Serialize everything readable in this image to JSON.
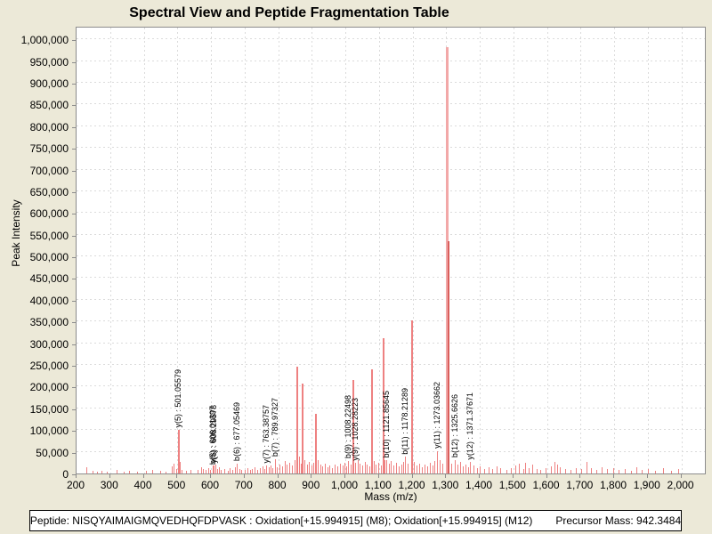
{
  "title": "Spectral View and Peptide Fragmentation Table",
  "footer": {
    "peptide_label": "Peptide: NISQYAIMAIGMQVEDHQFDPVASK : Oxidation[+15.994915] (M8); Oxidation[+15.994915] (M12)",
    "precursor_label": "Precursor Mass: 942.3484"
  },
  "chart_data": {
    "type": "bar",
    "subtype": "mass-spectrum",
    "title": "Spectral View and Peptide Fragmentation Table",
    "xlabel": "Mass (m/z)",
    "ylabel": "Peak Intensity",
    "xlim": [
      200,
      2070
    ],
    "ylim": [
      0,
      1027000
    ],
    "grid": "dashed",
    "x_ticks": [
      [
        200,
        "200"
      ],
      [
        300,
        "300"
      ],
      [
        400,
        "400"
      ],
      [
        500,
        "500"
      ],
      [
        600,
        "600"
      ],
      [
        700,
        "700"
      ],
      [
        800,
        "800"
      ],
      [
        900,
        "900"
      ],
      [
        1000,
        "1,000"
      ],
      [
        1100,
        "1,100"
      ],
      [
        1200,
        "1,200"
      ],
      [
        1300,
        "1,300"
      ],
      [
        1400,
        "1,400"
      ],
      [
        1500,
        "1,500"
      ],
      [
        1600,
        "1,600"
      ],
      [
        1700,
        "1,700"
      ],
      [
        1800,
        "1,800"
      ],
      [
        1900,
        "1,900"
      ],
      [
        2000,
        "2,000"
      ]
    ],
    "y_ticks": [
      [
        0,
        "0"
      ],
      [
        50000,
        "50,000"
      ],
      [
        100000,
        "100,000"
      ],
      [
        150000,
        "150,000"
      ],
      [
        200000,
        "200,000"
      ],
      [
        250000,
        "250,000"
      ],
      [
        300000,
        "300,000"
      ],
      [
        350000,
        "350,000"
      ],
      [
        400000,
        "400,000"
      ],
      [
        450000,
        "450,000"
      ],
      [
        500000,
        "500,000"
      ],
      [
        550000,
        "550,000"
      ],
      [
        600000,
        "600,000"
      ],
      [
        650000,
        "650,000"
      ],
      [
        700000,
        "700,000"
      ],
      [
        750000,
        "750,000"
      ],
      [
        800000,
        "800,000"
      ],
      [
        850000,
        "850,000"
      ],
      [
        900000,
        "900,000"
      ],
      [
        950000,
        "950,000"
      ],
      [
        1000000,
        "1,000,000"
      ]
    ],
    "colors": {
      "peak": "#EE8181",
      "peak_major_light": "#F2A8A8",
      "peak_major_dark": "#D95F5C",
      "grid": "#DBDBDB",
      "plot_border": "#8C8C8C",
      "plot_bg": "#FFFFFF",
      "window_bg": "#ECE9D8",
      "text": "#000000"
    },
    "peaks": [
      [
        230,
        14000
      ],
      [
        248,
        6000
      ],
      [
        262,
        5000
      ],
      [
        273,
        7000
      ],
      [
        291,
        5000
      ],
      [
        318,
        9000
      ],
      [
        341,
        5000
      ],
      [
        356,
        7000
      ],
      [
        379,
        5000
      ],
      [
        406,
        6000
      ],
      [
        426,
        9000
      ],
      [
        448,
        6000
      ],
      [
        466,
        5000
      ],
      [
        483,
        16000
      ],
      [
        490,
        22000
      ],
      [
        496,
        10000
      ],
      [
        501.05579,
        100000
      ],
      [
        507,
        26000
      ],
      [
        513,
        8000
      ],
      [
        526,
        6000
      ],
      [
        539,
        9000
      ],
      [
        561,
        8000
      ],
      [
        570,
        14000
      ],
      [
        576,
        10000
      ],
      [
        584,
        8000
      ],
      [
        591,
        12000
      ],
      [
        598,
        9000
      ],
      [
        604,
        18000
      ],
      [
        606.01397,
        14000
      ],
      [
        608.29578,
        18000
      ],
      [
        613,
        20000
      ],
      [
        618,
        10000
      ],
      [
        623,
        14000
      ],
      [
        629,
        8000
      ],
      [
        641,
        10000
      ],
      [
        649,
        7000
      ],
      [
        656,
        12000
      ],
      [
        663,
        9000
      ],
      [
        671,
        14000
      ],
      [
        677.05469,
        22000
      ],
      [
        684,
        10000
      ],
      [
        691,
        8000
      ],
      [
        701,
        9000
      ],
      [
        709,
        12000
      ],
      [
        716,
        8000
      ],
      [
        723,
        10000
      ],
      [
        731,
        14000
      ],
      [
        739,
        9000
      ],
      [
        746,
        12000
      ],
      [
        753,
        16000
      ],
      [
        759,
        10000
      ],
      [
        763.38757,
        18000
      ],
      [
        771,
        14000
      ],
      [
        777,
        18000
      ],
      [
        783,
        12000
      ],
      [
        789.97327,
        32000
      ],
      [
        797,
        14000
      ],
      [
        804,
        20000
      ],
      [
        811,
        16000
      ],
      [
        819,
        28000
      ],
      [
        826,
        20000
      ],
      [
        833,
        24000
      ],
      [
        841,
        18000
      ],
      [
        849,
        30000
      ],
      [
        855,
        247000
      ],
      [
        861,
        40000
      ],
      [
        867,
        22000
      ],
      [
        871,
        207000
      ],
      [
        879,
        30000
      ],
      [
        885,
        20000
      ],
      [
        891,
        26000
      ],
      [
        898,
        18000
      ],
      [
        904,
        24000
      ],
      [
        910,
        137000
      ],
      [
        918,
        30000
      ],
      [
        925,
        20000
      ],
      [
        932,
        16000
      ],
      [
        939,
        22000
      ],
      [
        946,
        14000
      ],
      [
        953,
        18000
      ],
      [
        961,
        12000
      ],
      [
        969,
        20000
      ],
      [
        976,
        16000
      ],
      [
        983,
        22000
      ],
      [
        991,
        18000
      ],
      [
        998,
        24000
      ],
      [
        1003,
        16000
      ],
      [
        1008.22498,
        28000
      ],
      [
        1015,
        20000
      ],
      [
        1021,
        215000
      ],
      [
        1028.28223,
        24000
      ],
      [
        1036,
        30000
      ],
      [
        1043,
        22000
      ],
      [
        1050,
        18000
      ],
      [
        1057,
        26000
      ],
      [
        1064,
        20000
      ],
      [
        1071,
        16000
      ],
      [
        1076,
        239000
      ],
      [
        1084,
        28000
      ],
      [
        1091,
        20000
      ],
      [
        1098,
        24000
      ],
      [
        1105,
        18000
      ],
      [
        1110,
        311000
      ],
      [
        1117,
        30000
      ],
      [
        1121.85645,
        30000
      ],
      [
        1129,
        22000
      ],
      [
        1136,
        28000
      ],
      [
        1143,
        18000
      ],
      [
        1151,
        24000
      ],
      [
        1159,
        16000
      ],
      [
        1166,
        20000
      ],
      [
        1173,
        26000
      ],
      [
        1178.21289,
        38000
      ],
      [
        1186,
        22000
      ],
      [
        1195,
        352000
      ],
      [
        1203,
        26000
      ],
      [
        1211,
        18000
      ],
      [
        1219,
        22000
      ],
      [
        1227,
        14000
      ],
      [
        1235,
        20000
      ],
      [
        1243,
        16000
      ],
      [
        1251,
        24000
      ],
      [
        1259,
        18000
      ],
      [
        1266,
        28000
      ],
      [
        1273.03662,
        52000
      ],
      [
        1281,
        30000
      ],
      [
        1288,
        22000
      ],
      [
        1308,
        30000
      ],
      [
        1316,
        22000
      ],
      [
        1325.6626,
        30000
      ],
      [
        1334,
        20000
      ],
      [
        1341,
        26000
      ],
      [
        1349,
        16000
      ],
      [
        1357,
        20000
      ],
      [
        1365,
        14000
      ],
      [
        1371.37671,
        26000
      ],
      [
        1381,
        18000
      ],
      [
        1391,
        12000
      ],
      [
        1401,
        16000
      ],
      [
        1413,
        10000
      ],
      [
        1426,
        14000
      ],
      [
        1438,
        10000
      ],
      [
        1451,
        16000
      ],
      [
        1461,
        12000
      ],
      [
        1479,
        8000
      ],
      [
        1493,
        12000
      ],
      [
        1506,
        18000
      ],
      [
        1516,
        22000
      ],
      [
        1529,
        10000
      ],
      [
        1536,
        24000
      ],
      [
        1545,
        12000
      ],
      [
        1556,
        20000
      ],
      [
        1569,
        10000
      ],
      [
        1581,
        8000
      ],
      [
        1596,
        12000
      ],
      [
        1611,
        16000
      ],
      [
        1623,
        26000
      ],
      [
        1631,
        20000
      ],
      [
        1639,
        14000
      ],
      [
        1653,
        10000
      ],
      [
        1669,
        8000
      ],
      [
        1686,
        12000
      ],
      [
        1701,
        10000
      ],
      [
        1719,
        26000
      ],
      [
        1731,
        12000
      ],
      [
        1746,
        8000
      ],
      [
        1763,
        14000
      ],
      [
        1779,
        10000
      ],
      [
        1796,
        12000
      ],
      [
        1813,
        8000
      ],
      [
        1831,
        10000
      ],
      [
        1849,
        6000
      ],
      [
        1866,
        14000
      ],
      [
        1883,
        8000
      ],
      [
        1901,
        10000
      ],
      [
        1921,
        6000
      ],
      [
        1946,
        12000
      ],
      [
        1969,
        6000
      ],
      [
        1991,
        10000
      ]
    ],
    "major_peaks": [
      {
        "mz": 1304,
        "intensity": 982000,
        "width": 3,
        "color_key": "peak_major_light"
      },
      {
        "mz": 1307,
        "intensity": 535000,
        "width": 2,
        "color_key": "peak_major_dark"
      }
    ],
    "annotations": [
      {
        "label": "y(5) : 501.05579",
        "mz": 501.05579,
        "intensity": 100000
      },
      {
        "label": "b(5) : 606.01397",
        "mz": 606.01397,
        "intensity": 14000
      },
      {
        "label": "y(6) : 608.29578",
        "mz": 608.29578,
        "intensity": 18000
      },
      {
        "label": "b(6) : 677.05469",
        "mz": 677.05469,
        "intensity": 22000
      },
      {
        "label": "y(7) : 763.38757",
        "mz": 763.38757,
        "intensity": 18000
      },
      {
        "label": "b(7) : 789.97327",
        "mz": 789.97327,
        "intensity": 32000
      },
      {
        "label": "b(9) : 1008.22498",
        "mz": 1008.22498,
        "intensity": 28000
      },
      {
        "label": "y(9) : 1028.28223",
        "mz": 1028.28223,
        "intensity": 24000
      },
      {
        "label": "b(10) : 1121.85645",
        "mz": 1121.85645,
        "intensity": 30000
      },
      {
        "label": "b(11) : 1178.21289",
        "mz": 1178.21289,
        "intensity": 38000
      },
      {
        "label": "y(11) : 1273.03662",
        "mz": 1273.03662,
        "intensity": 52000
      },
      {
        "label": "b(12) : 1325.6626",
        "mz": 1325.6626,
        "intensity": 30000
      },
      {
        "label": "y(12) : 1371.37671",
        "mz": 1371.37671,
        "intensity": 26000
      }
    ]
  }
}
